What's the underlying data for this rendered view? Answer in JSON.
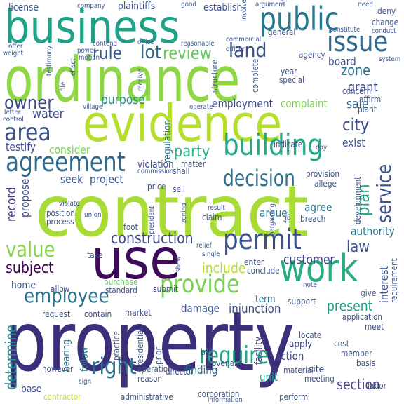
{
  "words": [
    {
      "text": "property",
      "color": "#3b2f7a"
    },
    {
      "text": "contract",
      "color": "#a8db34"
    },
    {
      "text": "ordinance",
      "color": "#8ed645"
    },
    {
      "text": "evidence",
      "color": "#b5de2b"
    },
    {
      "text": "business",
      "color": "#1fa187"
    },
    {
      "text": "use",
      "color": "#3e0a5a"
    },
    {
      "text": "work",
      "color": "#28ae80"
    },
    {
      "text": "agreement",
      "color": "#2e6b8e"
    },
    {
      "text": "building",
      "color": "#22a884"
    },
    {
      "text": "public",
      "color": "#2a788e"
    },
    {
      "text": "issue",
      "color": "#31688e"
    },
    {
      "text": "permit",
      "color": "#3b528b"
    },
    {
      "text": "area",
      "color": "#3b528b"
    },
    {
      "text": "decision",
      "color": "#2c728e"
    },
    {
      "text": "provide",
      "color": "#7ad151"
    },
    {
      "text": "employee",
      "color": "#2c728e"
    },
    {
      "text": "value",
      "color": "#86d549"
    },
    {
      "text": "require",
      "color": "#22a884"
    },
    {
      "text": "right",
      "color": "#2d708e"
    },
    {
      "text": "land",
      "color": "#3b528b"
    },
    {
      "text": "lot",
      "color": "#31688e"
    },
    {
      "text": "review",
      "color": "#65cb5e"
    },
    {
      "text": "rule",
      "color": "#365c8d"
    },
    {
      "text": "owner",
      "color": "#3e4a89"
    },
    {
      "text": "service",
      "color": "#3b528b"
    },
    {
      "text": "construction",
      "color": "#3f4788"
    },
    {
      "text": "city",
      "color": "#3e4c8a"
    },
    {
      "text": "party",
      "color": "#28ae80"
    },
    {
      "text": "subject",
      "color": "#440154"
    },
    {
      "text": "plan",
      "color": "#21a685"
    },
    {
      "text": "law",
      "color": "#3b528b"
    },
    {
      "text": "customer",
      "color": "#3e4a89"
    },
    {
      "text": "include",
      "color": "#b5de2b"
    },
    {
      "text": "present",
      "color": "#1f9e89"
    },
    {
      "text": "section",
      "color": "#433e85"
    },
    {
      "text": "determine",
      "color": "#21918c"
    },
    {
      "text": "zone",
      "color": "#2e6e8e"
    },
    {
      "text": "grant",
      "color": "#3f4788"
    },
    {
      "text": "water",
      "color": "#3f4788"
    },
    {
      "text": "purpose",
      "color": "#21918c"
    },
    {
      "text": "employment",
      "color": "#3e4a89"
    },
    {
      "text": "sale",
      "color": "#31688e"
    },
    {
      "text": "record",
      "color": "#414287"
    },
    {
      "text": "propose",
      "color": "#3e4989"
    },
    {
      "text": "seek",
      "color": "#3a548c"
    },
    {
      "text": "project",
      "color": "#3a548c"
    },
    {
      "text": "argue",
      "color": "#2a788e"
    },
    {
      "text": "agree",
      "color": "#2c728e"
    },
    {
      "text": "authority",
      "color": "#2c738e"
    },
    {
      "text": "injunction",
      "color": "#3e4a89"
    },
    {
      "text": "damage",
      "color": "#3b528b"
    },
    {
      "text": "finding",
      "color": "#2e6e8e"
    },
    {
      "text": "unit",
      "color": "#22a884"
    },
    {
      "text": "action",
      "color": "#3f4788"
    },
    {
      "text": "apply",
      "color": "#414287"
    },
    {
      "text": "facility",
      "color": "#3f4788"
    },
    {
      "text": "term",
      "color": "#2c728e"
    },
    {
      "text": "interest",
      "color": "#3b528b"
    },
    {
      "text": "home",
      "color": "#3b528b"
    },
    {
      "text": "testify",
      "color": "#3e4a89"
    },
    {
      "text": "consider",
      "color": "#7ad151"
    },
    {
      "text": "exist",
      "color": "#3b528b"
    },
    {
      "text": "complaint",
      "color": "#7ad151"
    },
    {
      "text": "board",
      "color": "#3b528b"
    },
    {
      "text": "base",
      "color": "#3f4788"
    },
    {
      "text": "hearing",
      "color": "#2c728e"
    },
    {
      "text": "follow",
      "color": "#2a788e"
    },
    {
      "text": "license",
      "color": "#3b528b"
    },
    {
      "text": "plaintiffs",
      "color": "#3b528b"
    },
    {
      "text": "establish",
      "color": "#3b528b"
    },
    {
      "text": "regulation",
      "color": "#2c728e"
    },
    {
      "text": "violation",
      "color": "#3f4788"
    },
    {
      "text": "matter",
      "color": "#3b528b"
    },
    {
      "text": "shall",
      "color": "#3f4788"
    },
    {
      "text": "price",
      "color": "#3b528b"
    },
    {
      "text": "sell",
      "color": "#3b528b"
    },
    {
      "text": "provision",
      "color": "#3b528b"
    },
    {
      "text": "allege",
      "color": "#3b528b"
    },
    {
      "text": "claim",
      "color": "#3b528b"
    },
    {
      "text": "breach",
      "color": "#3b528b"
    },
    {
      "text": "development",
      "color": "#3b528b"
    },
    {
      "text": "market",
      "color": "#3b528b"
    },
    {
      "text": "request",
      "color": "#3b528b"
    },
    {
      "text": "contain",
      "color": "#3b528b"
    },
    {
      "text": "purchase",
      "color": "#65cb5e"
    },
    {
      "text": "support",
      "color": "#3b528b"
    },
    {
      "text": "application",
      "color": "#3b528b"
    },
    {
      "text": "member",
      "color": "#3b528b"
    },
    {
      "text": "basis",
      "color": "#3b528b"
    },
    {
      "text": "site",
      "color": "#3b528b"
    },
    {
      "text": "material",
      "color": "#3b528b"
    },
    {
      "text": "locate",
      "color": "#3b528b"
    },
    {
      "text": "cost",
      "color": "#3b528b"
    },
    {
      "text": "requirement",
      "color": "#3b528b"
    },
    {
      "text": "give",
      "color": "#3b528b"
    },
    {
      "text": "meet",
      "color": "#3b528b"
    },
    {
      "text": "covenant",
      "color": "#3b528b"
    },
    {
      "text": "bid",
      "color": "#3b528b"
    },
    {
      "text": "prior",
      "color": "#3b528b"
    },
    {
      "text": "residential",
      "color": "#3b528b"
    },
    {
      "text": "practice",
      "color": "#3b528b"
    },
    {
      "text": "operation",
      "color": "#3b528b"
    },
    {
      "text": "reason",
      "color": "#3b528b"
    },
    {
      "text": "contractor",
      "color": "#b5de2b"
    },
    {
      "text": "administrative",
      "color": "#3b528b"
    },
    {
      "text": "corporation",
      "color": "#3b528b"
    },
    {
      "text": "information",
      "color": "#3b528b"
    },
    {
      "text": "director",
      "color": "#3b528b"
    },
    {
      "text": "labor",
      "color": "#3b528b"
    },
    {
      "text": "perform",
      "color": "#3b528b"
    },
    {
      "text": "meeting",
      "color": "#3b528b"
    },
    {
      "text": "sign",
      "color": "#3b528b"
    },
    {
      "text": "however",
      "color": "#3b528b"
    },
    {
      "text": "standard",
      "color": "#3b528b"
    },
    {
      "text": "submit",
      "color": "#3b528b"
    },
    {
      "text": "allow",
      "color": "#3b528b"
    },
    {
      "text": "take",
      "color": "#3b528b"
    },
    {
      "text": "foot",
      "color": "#3b528b"
    },
    {
      "text": "president",
      "color": "#3b528b"
    },
    {
      "text": "position",
      "color": "#3b528b"
    },
    {
      "text": "process",
      "color": "#3b528b"
    },
    {
      "text": "violate",
      "color": "#3b528b"
    },
    {
      "text": "union",
      "color": "#3b528b"
    },
    {
      "text": "enter",
      "color": "#3b528b"
    },
    {
      "text": "conclude",
      "color": "#3b528b"
    },
    {
      "text": "note",
      "color": "#3b528b"
    },
    {
      "text": "fail",
      "color": "#3b528b"
    },
    {
      "text": "bargaining",
      "color": "#3b528b"
    },
    {
      "text": "result",
      "color": "#3b528b"
    },
    {
      "text": "indicate",
      "color": "#3b528b"
    },
    {
      "text": "day",
      "color": "#3b528b"
    },
    {
      "text": "commission",
      "color": "#3b528b"
    },
    {
      "text": "operate",
      "color": "#3b528b"
    },
    {
      "text": "plant",
      "color": "#3b528b"
    },
    {
      "text": "affirm",
      "color": "#3b528b"
    },
    {
      "text": "concern",
      "color": "#3b528b"
    },
    {
      "text": "special",
      "color": "#3b528b"
    },
    {
      "text": "complete",
      "color": "#3b528b"
    },
    {
      "text": "structure",
      "color": "#3b528b"
    },
    {
      "text": "year",
      "color": "#3b528b"
    },
    {
      "text": "agency",
      "color": "#3b528b"
    },
    {
      "text": "commercial",
      "color": "#3b528b"
    },
    {
      "text": "general",
      "color": "#3b528b"
    },
    {
      "text": "constitute",
      "color": "#3b528b"
    },
    {
      "text": "conduct",
      "color": "#3b528b"
    },
    {
      "text": "deny",
      "color": "#3b528b"
    },
    {
      "text": "change",
      "color": "#3b528b"
    },
    {
      "text": "need",
      "color": "#3b528b"
    },
    {
      "text": "approval",
      "color": "#3b528b"
    },
    {
      "text": "argument",
      "color": "#3b528b"
    },
    {
      "text": "involve",
      "color": "#3b528b"
    },
    {
      "text": "reasonable",
      "color": "#3b528b"
    },
    {
      "text": "officer",
      "color": "#3b528b"
    },
    {
      "text": "good",
      "color": "#3b528b"
    },
    {
      "text": "company",
      "color": "#3b528b"
    },
    {
      "text": "offer",
      "color": "#3b528b"
    },
    {
      "text": "contend",
      "color": "#3b528b"
    },
    {
      "text": "office",
      "color": "#3b528b"
    },
    {
      "text": "power",
      "color": "#3b528b"
    },
    {
      "text": "motion",
      "color": "#3b528b"
    },
    {
      "text": "weight",
      "color": "#3b528b"
    },
    {
      "text": "village",
      "color": "#3b528b"
    },
    {
      "text": "control",
      "color": "#3b528b"
    },
    {
      "text": "letter",
      "color": "#3b528b"
    },
    {
      "text": "file",
      "color": "#3b528b"
    },
    {
      "text": "receive",
      "color": "#3b528b"
    },
    {
      "text": "system",
      "color": "#3b528b"
    },
    {
      "text": "relief",
      "color": "#3b528b"
    },
    {
      "text": "single",
      "color": "#3b528b"
    },
    {
      "text": "show",
      "color": "#3b528b"
    },
    {
      "text": "zoning",
      "color": "#3b528b"
    },
    {
      "text": "testimony",
      "color": "#3b528b"
    },
    {
      "text": "effect",
      "color": "#3b528b"
    }
  ]
}
